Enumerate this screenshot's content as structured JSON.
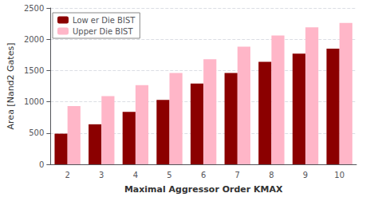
{
  "chart_data": {
    "type": "bar",
    "xlabel": "Maximal Aggressor Order KMAX",
    "ylabel": "Area [Nand2 Gates]",
    "categories": [
      2,
      3,
      4,
      5,
      6,
      7,
      8,
      9,
      10
    ],
    "series": [
      {
        "name": "Low er Die BIST",
        "color": "#8B0000",
        "values": [
          490,
          640,
          840,
          1030,
          1290,
          1460,
          1640,
          1770,
          1850
        ]
      },
      {
        "name": "Upper Die BIST",
        "color": "#FFB6C8",
        "values": [
          930,
          1090,
          1265,
          1460,
          1680,
          1880,
          2060,
          2190,
          2260
        ]
      }
    ],
    "ylim": [
      0,
      2500
    ],
    "yticks": [
      0,
      500,
      1000,
      1500,
      2000,
      2500
    ],
    "grid": true,
    "legend": "upper left"
  }
}
